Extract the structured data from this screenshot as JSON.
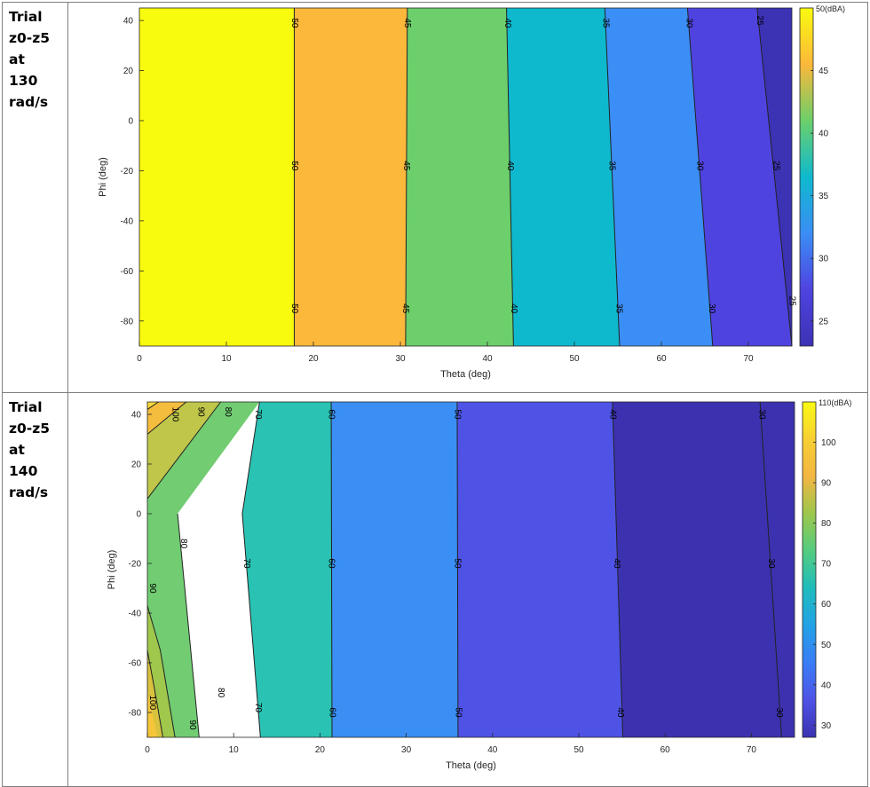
{
  "rows": [
    {
      "label_lines": [
        "Trial",
        "z0-z5",
        "at",
        "130",
        "rad/s"
      ]
    },
    {
      "label_lines": [
        "Trial",
        "z0-z5",
        "at",
        "140",
        "rad/s"
      ]
    }
  ],
  "chart_data": [
    {
      "type": "heatmap",
      "subtype": "filled-contour",
      "xlabel": "Theta (deg)",
      "ylabel": "Phi (deg)",
      "xlim": [
        0,
        75
      ],
      "ylim": [
        -90,
        45
      ],
      "xticks": [
        0,
        10,
        20,
        30,
        40,
        50,
        60,
        70
      ],
      "yticks": [
        40,
        20,
        0,
        -20,
        -40,
        -60,
        -80
      ],
      "colorbar": {
        "label": "50(dBA)",
        "ticks": [
          45,
          40,
          35,
          30,
          25
        ],
        "range": [
          23,
          50
        ]
      },
      "levels": [
        {
          "value": 50,
          "color": "#f9fb0e",
          "boundary_x": [
            17.8,
            17.8
          ]
        },
        {
          "value": 45,
          "color": "#fbb83a",
          "boundary_x": [
            30.8,
            30.6
          ]
        },
        {
          "value": 40,
          "color": "#6ccf6b",
          "boundary_x": [
            42.2,
            43.0
          ]
        },
        {
          "value": 35,
          "color": "#0eb9ce",
          "boundary_x": [
            53.5,
            55.2
          ]
        },
        {
          "value": 30,
          "color": "#3b8ef5",
          "boundary_x": [
            63.0,
            65.9
          ]
        },
        {
          "value": 25,
          "color": "#4f43e0",
          "boundary_x": [
            71.0,
            75.0
          ]
        },
        {
          "value": 22,
          "color": "#3c32b4",
          "boundary_x": null
        }
      ],
      "contour_labels": [
        {
          "text": "50",
          "x": 17.8,
          "y": 39
        },
        {
          "text": "50",
          "x": 17.8,
          "y": -18
        },
        {
          "text": "50",
          "x": 17.8,
          "y": -75
        },
        {
          "text": "45",
          "x": 30.8,
          "y": 39
        },
        {
          "text": "45",
          "x": 30.7,
          "y": -18
        },
        {
          "text": "45",
          "x": 30.6,
          "y": -75
        },
        {
          "text": "40",
          "x": 42.3,
          "y": 39
        },
        {
          "text": "40",
          "x": 42.6,
          "y": -18
        },
        {
          "text": "40",
          "x": 43.0,
          "y": -75
        },
        {
          "text": "35",
          "x": 53.6,
          "y": 39
        },
        {
          "text": "35",
          "x": 54.3,
          "y": -18
        },
        {
          "text": "35",
          "x": 55.1,
          "y": -75
        },
        {
          "text": "30",
          "x": 63.2,
          "y": 39
        },
        {
          "text": "30",
          "x": 64.4,
          "y": -18
        },
        {
          "text": "30",
          "x": 65.8,
          "y": -75
        },
        {
          "text": "25",
          "x": 71.3,
          "y": 40
        },
        {
          "text": "25",
          "x": 73.2,
          "y": -18
        },
        {
          "text": "25",
          "x": 75.0,
          "y": -72
        }
      ]
    },
    {
      "type": "heatmap",
      "subtype": "filled-contour",
      "xlabel": "Theta (deg)",
      "ylabel": "Phi (deg)",
      "xlim": [
        0,
        75
      ],
      "ylim": [
        -90,
        45
      ],
      "xticks": [
        0,
        10,
        20,
        30,
        40,
        50,
        60,
        70
      ],
      "yticks": [
        40,
        20,
        0,
        -20,
        -40,
        -60,
        -80
      ],
      "colorbar": {
        "label": "110(dBA)",
        "ticks": [
          100,
          90,
          80,
          70,
          60,
          50,
          40,
          30
        ],
        "range": [
          27,
          110
        ]
      },
      "colorbar_stops": [
        "#fafa14",
        "#f7cf33",
        "#f3b643",
        "#9bc74c",
        "#54cc80",
        "#1fbcbc",
        "#22a2e6",
        "#3a7cf6",
        "#4e53e6",
        "#3a31b0"
      ],
      "regions": [
        {
          "color": "#f7d83a",
          "polygon": [
            [
              0,
              45
            ],
            [
              1.3,
              45
            ],
            [
              0,
              42
            ]
          ]
        },
        {
          "color": "#f5bd3e",
          "polygon": [
            [
              0,
              42
            ],
            [
              1.3,
              45
            ],
            [
              4.5,
              45
            ],
            [
              0,
              32
            ]
          ]
        },
        {
          "color": "#bfc64a",
          "polygon": [
            [
              0,
              32
            ],
            [
              4.5,
              45
            ],
            [
              8.5,
              45
            ],
            [
              0,
              6
            ]
          ]
        },
        {
          "color": "#71cc72",
          "polygon": [
            [
              0,
              6
            ],
            [
              8.5,
              45
            ],
            [
              13.0,
              45
            ],
            [
              3.5,
              0
            ],
            [
              6.0,
              -90
            ],
            [
              0,
              -90
            ]
          ]
        },
        {
          "color": "#29c2b3",
          "polygon": [
            [
              13.0,
              45
            ],
            [
              21.3,
              45
            ],
            [
              21.4,
              -90
            ],
            [
              13.1,
              -90
            ],
            [
              11.0,
              0
            ]
          ]
        },
        {
          "color": "#3b8ff4",
          "polygon": [
            [
              21.3,
              45
            ],
            [
              35.9,
              45
            ],
            [
              36.0,
              -90
            ],
            [
              21.4,
              -90
            ]
          ]
        },
        {
          "color": "#4e53e6",
          "polygon": [
            [
              35.9,
              45
            ],
            [
              53.9,
              45
            ],
            [
              55.1,
              -90
            ],
            [
              36.0,
              -90
            ]
          ]
        },
        {
          "color": "#3c32b0",
          "polygon": [
            [
              53.9,
              45
            ],
            [
              75,
              45
            ],
            [
              75,
              -90
            ],
            [
              55.1,
              -90
            ]
          ]
        },
        {
          "color": "#9fc84c",
          "polygon": [
            [
              0,
              -37
            ],
            [
              0,
              -90
            ],
            [
              3.2,
              -90
            ],
            [
              1.5,
              -55
            ]
          ]
        },
        {
          "color": "#d9c23e",
          "polygon": [
            [
              0,
              -55
            ],
            [
              0,
              -90
            ],
            [
              1.8,
              -90
            ],
            [
              0.8,
              -70
            ]
          ]
        },
        {
          "color": "#f5c53a",
          "polygon": [
            [
              0,
              -72
            ],
            [
              0,
              -90
            ],
            [
              1.2,
              -90
            ]
          ]
        }
      ],
      "contours": [
        {
          "value": 100,
          "points": [
            [
              0,
              42
            ],
            [
              1.3,
              45
            ]
          ]
        },
        {
          "value": 90,
          "points": [
            [
              0,
              32
            ],
            [
              4.5,
              45
            ]
          ]
        },
        {
          "value": 80,
          "points": [
            [
              0,
              6
            ],
            [
              8.5,
              45
            ]
          ]
        },
        {
          "value": 70,
          "points": [
            [
              13.0,
              45
            ],
            [
              11.0,
              0
            ],
            [
              13.1,
              -90
            ]
          ]
        },
        {
          "value": 60,
          "points": [
            [
              21.3,
              45
            ],
            [
              21.4,
              -90
            ]
          ]
        },
        {
          "value": 50,
          "points": [
            [
              35.9,
              45
            ],
            [
              36.0,
              -90
            ]
          ]
        },
        {
          "value": 40,
          "points": [
            [
              53.9,
              45
            ],
            [
              55.1,
              -90
            ]
          ]
        },
        {
          "value": 30,
          "points": [
            [
              71.0,
              45
            ],
            [
              73.5,
              -90
            ]
          ]
        },
        {
          "value": 80,
          "points": [
            [
              3.5,
              0
            ],
            [
              6.0,
              -90
            ]
          ]
        },
        {
          "value": 90,
          "points": [
            [
              0,
              -37
            ],
            [
              1.5,
              -55
            ],
            [
              3.2,
              -90
            ]
          ]
        },
        {
          "value": 100,
          "points": [
            [
              0,
              -55
            ],
            [
              0.8,
              -70
            ],
            [
              1.8,
              -90
            ]
          ]
        }
      ],
      "contour_labels": [
        {
          "text": "100",
          "x": 3.2,
          "y": 40
        },
        {
          "text": "90",
          "x": 6.2,
          "y": 41
        },
        {
          "text": "80",
          "x": 9.3,
          "y": 41
        },
        {
          "text": "70",
          "x": 12.8,
          "y": 40
        },
        {
          "text": "60",
          "x": 21.3,
          "y": 40
        },
        {
          "text": "50",
          "x": 35.9,
          "y": 40
        },
        {
          "text": "40",
          "x": 53.9,
          "y": 40
        },
        {
          "text": "30",
          "x": 71.2,
          "y": 40
        },
        {
          "text": "80",
          "x": 4.2,
          "y": -12
        },
        {
          "text": "70",
          "x": 11.5,
          "y": -20
        },
        {
          "text": "60",
          "x": 21.3,
          "y": -20
        },
        {
          "text": "50",
          "x": 35.9,
          "y": -20
        },
        {
          "text": "40",
          "x": 54.4,
          "y": -20
        },
        {
          "text": "30",
          "x": 72.3,
          "y": -20
        },
        {
          "text": "90",
          "x": 0.6,
          "y": -30
        },
        {
          "text": "100",
          "x": 0.6,
          "y": -76
        },
        {
          "text": "80",
          "x": 8.5,
          "y": -72
        },
        {
          "text": "90",
          "x": 5.2,
          "y": -85
        },
        {
          "text": "70",
          "x": 12.8,
          "y": -78
        },
        {
          "text": "60",
          "x": 21.4,
          "y": -80
        },
        {
          "text": "50",
          "x": 36.0,
          "y": -80
        },
        {
          "text": "40",
          "x": 54.8,
          "y": -80
        },
        {
          "text": "30",
          "x": 73.2,
          "y": -80
        }
      ]
    }
  ]
}
